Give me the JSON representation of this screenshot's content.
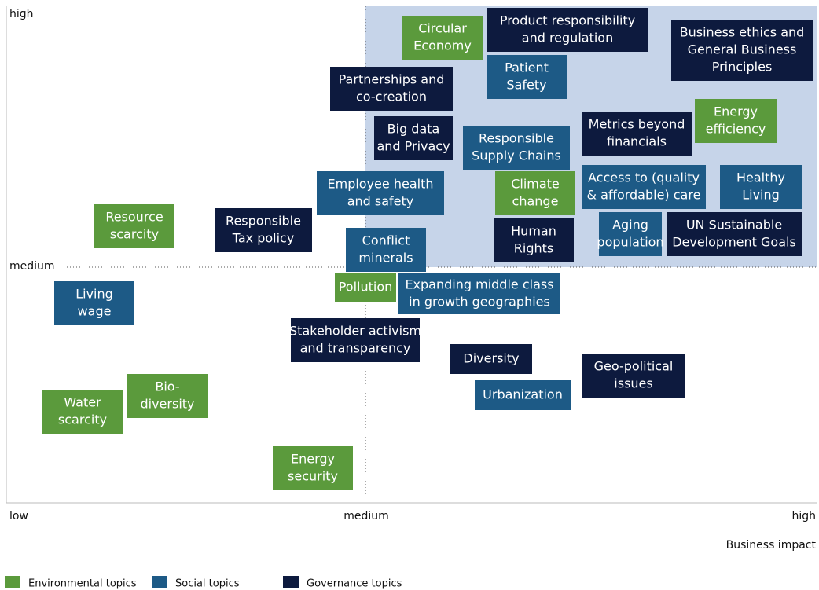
{
  "axes": {
    "y_high": "high",
    "y_medium": "medium",
    "y_low": "low",
    "x_medium": "medium",
    "x_high": "high",
    "x_title": "Business impact"
  },
  "legend": [
    {
      "name": "Environmental topics",
      "color": "#5b9a3c"
    },
    {
      "name": "Social topics",
      "color": "#1d5a86"
    },
    {
      "name": "Governance topics",
      "color": "#0d1a3e"
    }
  ],
  "nodes": [
    {
      "lines": [
        "Circular",
        "Economy"
      ],
      "color": "#5b9a3c"
    },
    {
      "lines": [
        "Product responsibility",
        "and regulation"
      ],
      "color": "#0d1a3e"
    },
    {
      "lines": [
        "Business ethics and",
        "General Business",
        "Principles"
      ],
      "color": "#0d1a3e"
    },
    {
      "lines": [
        "Patient",
        "Safety"
      ],
      "color": "#1d5a86"
    },
    {
      "lines": [
        "Partnerships and",
        "co-creation"
      ],
      "color": "#0d1a3e"
    },
    {
      "lines": [
        "Big data",
        "and Privacy"
      ],
      "color": "#0d1a3e"
    },
    {
      "lines": [
        "Responsible",
        "Supply Chains"
      ],
      "color": "#1d5a86"
    },
    {
      "lines": [
        "Metrics beyond",
        "financials"
      ],
      "color": "#0d1a3e"
    },
    {
      "lines": [
        "Energy",
        "efficiency"
      ],
      "color": "#5b9a3c"
    },
    {
      "lines": [
        "Employee health",
        "and safety"
      ],
      "color": "#1d5a86"
    },
    {
      "lines": [
        "Climate",
        "change"
      ],
      "color": "#5b9a3c"
    },
    {
      "lines": [
        "Access to (quality",
        "& affordable) care"
      ],
      "color": "#1d5a86"
    },
    {
      "lines": [
        "Healthy",
        "Living"
      ],
      "color": "#1d5a86"
    },
    {
      "lines": [
        "Resource",
        "scarcity"
      ],
      "color": "#5b9a3c"
    },
    {
      "lines": [
        "Responsible",
        "Tax policy"
      ],
      "color": "#0d1a3e"
    },
    {
      "lines": [
        "Conflict",
        "minerals"
      ],
      "color": "#1d5a86"
    },
    {
      "lines": [
        "Human",
        "Rights"
      ],
      "color": "#0d1a3e"
    },
    {
      "lines": [
        "Aging",
        "population"
      ],
      "color": "#1d5a86"
    },
    {
      "lines": [
        "UN Sustainable",
        "Development Goals"
      ],
      "color": "#0d1a3e"
    },
    {
      "lines": [
        "Pollution"
      ],
      "color": "#5b9a3c"
    },
    {
      "lines": [
        "Expanding middle class",
        "in growth geographies"
      ],
      "color": "#1d5a86"
    },
    {
      "lines": [
        "Living",
        "wage"
      ],
      "color": "#1d5a86"
    },
    {
      "lines": [
        "Stakeholder activism",
        "and transparency"
      ],
      "color": "#0d1a3e"
    },
    {
      "lines": [
        "Diversity"
      ],
      "color": "#0d1a3e"
    },
    {
      "lines": [
        "Geo-political",
        "issues"
      ],
      "color": "#0d1a3e"
    },
    {
      "lines": [
        "Urbanization"
      ],
      "color": "#1d5a86"
    },
    {
      "lines": [
        "Bio-",
        "diversity"
      ],
      "color": "#5b9a3c"
    },
    {
      "lines": [
        "Water",
        "scarcity"
      ],
      "color": "#5b9a3c"
    },
    {
      "lines": [
        "Energy",
        "security"
      ],
      "color": "#5b9a3c"
    }
  ]
}
